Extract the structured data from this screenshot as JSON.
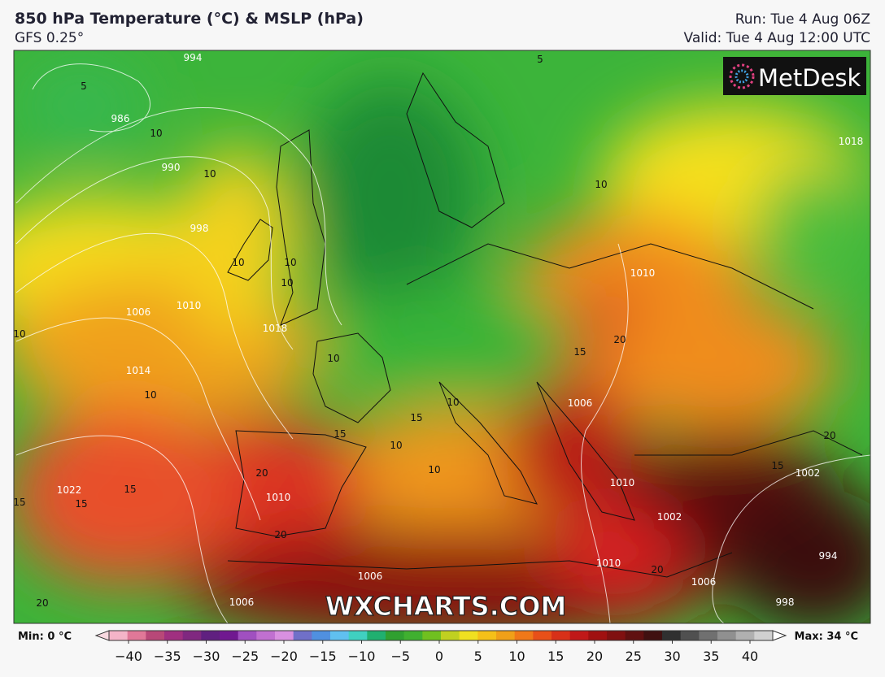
{
  "header": {
    "title": "850 hPa Temperature (°C) & MSLP (hPa)",
    "model": "GFS 0.25°",
    "run": "Run: Tue 4 Aug 06Z",
    "valid": "Valid: Tue 4 Aug 12:00 UTC"
  },
  "logo": "MetDesk",
  "watermark": "WXCHARTS.COM",
  "colorbar": {
    "min_label": "Min: 0 °C",
    "max_label": "Max: 34 °C",
    "ticks": [
      "−40",
      "−35",
      "−30",
      "−25",
      "−20",
      "−15",
      "−10",
      "−5",
      "0",
      "5",
      "10",
      "15",
      "20",
      "25",
      "30",
      "35",
      "40"
    ]
  },
  "map_labels": [
    "994",
    "5",
    "986",
    "10",
    "990",
    "10",
    "998",
    "10",
    "10",
    "10",
    "1006",
    "1010",
    "1018",
    "10",
    "1014",
    "10",
    "10",
    "10",
    "1010",
    "15",
    "20",
    "1006",
    "10",
    "15",
    "15",
    "10",
    "10",
    "20",
    "1010",
    "15",
    "1022",
    "15",
    "15",
    "20",
    "1010",
    "1002",
    "1002",
    "15",
    "20",
    "994",
    "998",
    "1010",
    "1006",
    "20",
    "1006",
    "1006",
    "20",
    "1018",
    "5"
  ]
}
